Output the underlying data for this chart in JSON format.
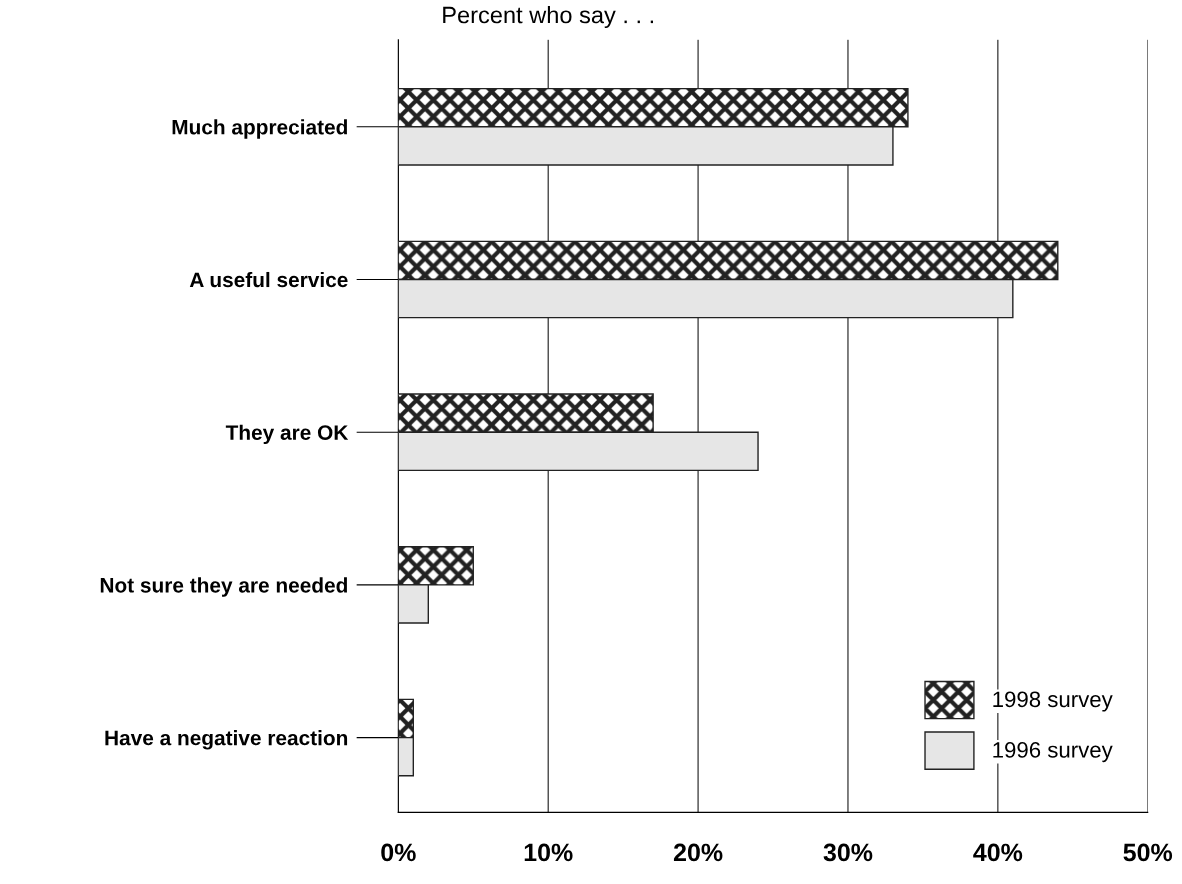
{
  "chart_data": {
    "type": "bar",
    "orientation": "horizontal",
    "title": "Percent who say . . .",
    "categories": [
      "Much appreciated",
      "A useful service",
      "They are OK",
      "Not sure they are needed",
      "Have a negative reaction"
    ],
    "series": [
      {
        "name": "1998 survey",
        "color": "#222222",
        "values": [
          34,
          44,
          17,
          5,
          1
        ]
      },
      {
        "name": "1996 survey",
        "color": "#e6e6e6",
        "values": [
          33,
          41,
          24,
          2,
          1
        ]
      }
    ],
    "xlim": [
      0,
      50
    ],
    "xticks": [
      {
        "value": 0,
        "label": "0%"
      },
      {
        "value": 10,
        "label": "10%"
      },
      {
        "value": 20,
        "label": "20%"
      },
      {
        "value": 30,
        "label": "30%"
      },
      {
        "value": 40,
        "label": "40%"
      },
      {
        "value": 50,
        "label": "50%"
      }
    ],
    "grid": "x",
    "legend": "bottom right"
  }
}
